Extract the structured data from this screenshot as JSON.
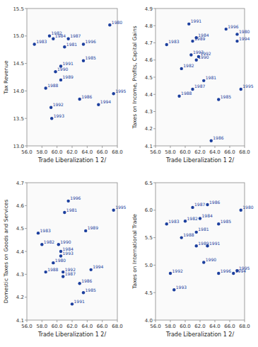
{
  "chart_data": [
    {
      "type": "scatter",
      "xlabel": "Trade Liberalization 1 2/",
      "ylabel": "Tax Revenue",
      "color": "#1c3f9e",
      "grid": false,
      "xlim": [
        56.0,
        68.0
      ],
      "ylim": [
        13.0,
        15.5
      ],
      "xticks": [
        {
          "value": 56,
          "label": "56.0"
        },
        {
          "value": 58,
          "label": "58.0"
        },
        {
          "value": 60,
          "label": "60.0"
        },
        {
          "value": 62,
          "label": "62.0"
        },
        {
          "value": 64,
          "label": "64.0"
        },
        {
          "value": 66,
          "label": "66.0"
        },
        {
          "value": 68,
          "label": "68.0"
        }
      ],
      "yticks": [
        {
          "value": 13,
          "label": "13.0"
        },
        13.5,
        {
          "value": 14,
          "label": "14.0"
        },
        14.5,
        {
          "value": 15,
          "label": "15.0"
        },
        15.5
      ],
      "x": [
        67.0,
        61.0,
        59.0,
        57.0,
        59.5,
        63.5,
        63.0,
        61.5,
        58.5,
        60.5,
        59.8,
        60.5,
        59.2,
        59.3,
        65.5,
        67.5,
        63.5
      ],
      "values": [
        15.2,
        14.8,
        15.0,
        14.85,
        14.95,
        14.55,
        13.85,
        14.95,
        14.05,
        14.2,
        14.35,
        14.45,
        13.7,
        13.5,
        13.75,
        13.95,
        14.85
      ],
      "annotations": [
        "1980",
        "1981",
        "1982",
        "1983",
        "1984",
        "1985",
        "1986",
        "1987",
        "1988",
        "1989",
        "1990",
        "1991",
        "1992",
        "1993",
        "1994",
        "1995",
        "1996"
      ]
    },
    {
      "type": "scatter",
      "xlabel": "Trade Liberalization 1 2/",
      "ylabel": "Taxes on Income, Profits, Capital Gains",
      "color": "#1c3f9e",
      "grid": false,
      "xlim": [
        56.0,
        68.0
      ],
      "ylim": [
        4.1,
        4.9
      ],
      "xticks": [
        {
          "value": 56,
          "label": "56.0"
        },
        {
          "value": 58,
          "label": "58.0"
        },
        {
          "value": 60,
          "label": "60.0"
        },
        {
          "value": 62,
          "label": "62.0"
        },
        {
          "value": 64,
          "label": "64.0"
        },
        {
          "value": 66,
          "label": "66.0"
        },
        {
          "value": 68,
          "label": "68.0"
        }
      ],
      "yticks": [
        4.1,
        4.2,
        4.3,
        4.4,
        4.5,
        4.6,
        4.7,
        4.8,
        4.9
      ],
      "x": [
        67.0,
        62.5,
        59.5,
        57.5,
        61.5,
        64.5,
        63.5,
        61.0,
        59.2,
        61.0,
        61.5,
        60.5,
        61.8,
        60.8,
        67.0,
        67.5,
        65.5
      ],
      "values": [
        4.75,
        4.48,
        4.55,
        4.69,
        4.73,
        4.37,
        4.13,
        4.43,
        4.39,
        4.71,
        4.6,
        4.81,
        4.62,
        4.63,
        4.71,
        4.43,
        4.78
      ],
      "annotations": [
        "1980",
        "1981",
        "1982",
        "1983",
        "1984",
        "1985",
        "1986",
        "1987",
        "1988",
        "1989",
        "1990",
        "1991",
        "1992",
        "1993",
        "1994",
        "1995",
        "1996"
      ]
    },
    {
      "type": "scatter",
      "xlabel": "Trade Liberalization 1 2/",
      "ylabel": "Domestic Taxes on Goods and Services",
      "color": "#1c3f9e",
      "grid": false,
      "xlim": [
        56.0,
        68.0
      ],
      "ylim": [
        4.1,
        4.7
      ],
      "xticks": [
        {
          "value": 56,
          "label": "56.0"
        },
        {
          "value": 58,
          "label": "58.0"
        },
        {
          "value": 60,
          "label": "60.0"
        },
        {
          "value": 62,
          "label": "62.0"
        },
        {
          "value": 64,
          "label": "64.0"
        },
        {
          "value": 66,
          "label": "66.0"
        },
        {
          "value": 68,
          "label": "68.0"
        }
      ],
      "yticks": [
        4.1,
        4.2,
        4.3,
        4.4,
        4.5,
        4.6,
        4.7
      ],
      "x": [
        59.5,
        61.0,
        58.0,
        57.5,
        60.5,
        63.5,
        63.0,
        60.8,
        58.5,
        63.8,
        60.2,
        62.0,
        60.8,
        60.5,
        64.5,
        67.5,
        61.5
      ],
      "values": [
        4.35,
        4.57,
        4.43,
        4.48,
        4.4,
        4.22,
        4.26,
        4.29,
        4.31,
        4.49,
        4.43,
        4.17,
        4.31,
        4.38,
        4.32,
        4.58,
        4.62
      ],
      "annotations": [
        "1980",
        "1981",
        "1982",
        "1983",
        "1984",
        "1985",
        "1986",
        "1987",
        "1988",
        "1989",
        "1990",
        "1991",
        "1992",
        "1993",
        "1994",
        "1995",
        "1996"
      ]
    },
    {
      "type": "scatter",
      "xlabel": "Trade Liberalization 1 2/",
      "ylabel": "Taxes on International Trade",
      "color": "#1c3f9e",
      "grid": false,
      "xlim": [
        56.0,
        68.0
      ],
      "ylim": [
        4.0,
        6.5
      ],
      "xticks": [
        {
          "value": 56,
          "label": "56.0"
        },
        {
          "value": 58,
          "label": "58.0"
        },
        {
          "value": 60,
          "label": "60.0"
        },
        {
          "value": 62,
          "label": "62.0"
        },
        {
          "value": 64,
          "label": "64.0"
        },
        {
          "value": 66,
          "label": "66.0"
        },
        {
          "value": 68,
          "label": "68.0"
        }
      ],
      "yticks": [
        {
          "value": 4,
          "label": "4.0"
        },
        4.5,
        {
          "value": 5,
          "label": "5.0"
        },
        5.5,
        {
          "value": 6,
          "label": "6.0"
        },
        6.5
      ],
      "x": [
        67.5,
        61.5,
        60.0,
        57.5,
        62.0,
        64.5,
        63.0,
        61.0,
        59.5,
        61.5,
        62.5,
        63.0,
        58.0,
        58.5,
        66.5,
        67.0,
        64.5
      ],
      "values": [
        6.0,
        5.6,
        5.8,
        5.75,
        5.85,
        5.75,
        6.1,
        6.05,
        5.5,
        5.35,
        5.05,
        5.35,
        4.85,
        4.55,
        4.85,
        4.9,
        4.85
      ],
      "annotations": [
        "1980",
        "1981",
        "1982",
        "1983",
        "1984",
        "1985",
        "1986",
        "1987",
        "1988",
        "1989",
        "1990",
        "1991",
        "1992",
        "1993",
        "1994",
        "1995",
        "1996"
      ]
    }
  ]
}
